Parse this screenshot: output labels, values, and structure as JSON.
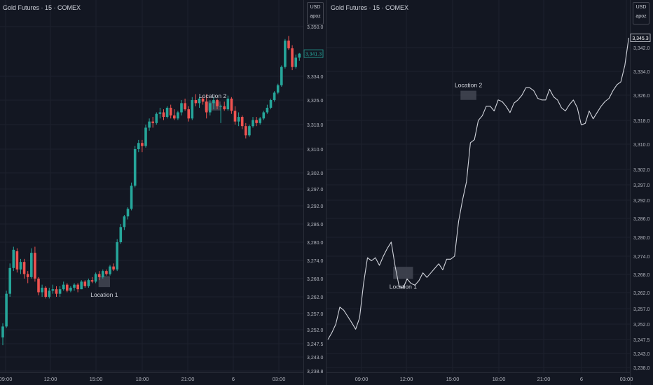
{
  "colors": {
    "background": "#131722",
    "grid": "#1e222d",
    "axis_text": "#b2b5be",
    "up": "#26a69a",
    "down": "#ef5350",
    "line": "#d1d4dc",
    "zone": "#4a4e59"
  },
  "chart_data": [
    {
      "type": "candlestick",
      "title": "Gold Futures · 15 · COMEX",
      "currency": "USD",
      "unit_label": "apoz",
      "x_tick_labels": [
        "09:00",
        "12:00",
        "15:00",
        "18:00",
        "21:00",
        "6",
        "03:00"
      ],
      "y_tick_labels": [
        "3,350.0",
        "3,334.0",
        "3,326.0",
        "3,318.0",
        "3,310.0",
        "3,302.0",
        "3,297.0",
        "3,292.0",
        "3,286.0",
        "3,280.0",
        "3,274.0",
        "3,268.0",
        "3,262.0",
        "3,257.0",
        "3,252.0",
        "3,247.5",
        "3,243.0",
        "3,238.8"
      ],
      "last_price_label": "3,341.3",
      "annotations": [
        {
          "text": "Location 1",
          "x_range": [
            26.8,
            30.0
          ],
          "y_range": [
            3265.2,
            3268.8
          ]
        },
        {
          "text": "Location 2",
          "x_range": [
            56.5,
            61.0
          ],
          "y_range": [
            3322.6,
            3325.6
          ]
        }
      ],
      "candles": [
        [
          3249.5,
          3254.0,
          3247.0,
          3253.0
        ],
        [
          3253.0,
          3264.0,
          3252.5,
          3263.0
        ],
        [
          3263.0,
          3273.0,
          3262.0,
          3271.5
        ],
        [
          3271.5,
          3278.5,
          3270.5,
          3277.5
        ],
        [
          3277.0,
          3278.0,
          3270.0,
          3271.0
        ],
        [
          3271.0,
          3274.5,
          3269.5,
          3273.5
        ],
        [
          3273.5,
          3274.5,
          3268.0,
          3269.5
        ],
        [
          3269.5,
          3270.5,
          3266.5,
          3268.5
        ],
        [
          3268.5,
          3278.0,
          3268.0,
          3276.5
        ],
        [
          3276.5,
          3278.5,
          3267.0,
          3268.0
        ],
        [
          3268.0,
          3268.5,
          3262.5,
          3263.5
        ],
        [
          3263.5,
          3266.0,
          3262.0,
          3265.0
        ],
        [
          3265.0,
          3265.5,
          3261.5,
          3262.0
        ],
        [
          3262.0,
          3265.0,
          3261.5,
          3264.0
        ],
        [
          3264.0,
          3266.0,
          3263.0,
          3264.5
        ],
        [
          3264.5,
          3265.5,
          3262.0,
          3263.0
        ],
        [
          3263.0,
          3265.5,
          3262.0,
          3264.5
        ],
        [
          3264.5,
          3267.0,
          3264.0,
          3266.0
        ],
        [
          3266.0,
          3266.5,
          3263.5,
          3264.0
        ],
        [
          3264.0,
          3265.5,
          3263.5,
          3265.0
        ],
        [
          3265.0,
          3266.5,
          3264.0,
          3266.0
        ],
        [
          3266.0,
          3266.5,
          3263.5,
          3264.5
        ],
        [
          3264.5,
          3267.5,
          3264.5,
          3267.0
        ],
        [
          3267.0,
          3267.5,
          3265.0,
          3265.5
        ],
        [
          3265.5,
          3268.0,
          3265.0,
          3267.5
        ],
        [
          3267.5,
          3268.5,
          3266.5,
          3267.0
        ],
        [
          3267.0,
          3270.0,
          3266.5,
          3269.5
        ],
        [
          3269.5,
          3270.5,
          3267.5,
          3268.5
        ],
        [
          3268.5,
          3271.0,
          3268.0,
          3270.5
        ],
        [
          3270.5,
          3271.0,
          3269.0,
          3269.5
        ],
        [
          3269.5,
          3272.5,
          3269.0,
          3272.0
        ],
        [
          3272.0,
          3273.0,
          3270.5,
          3271.0
        ],
        [
          3271.0,
          3281.0,
          3270.5,
          3280.0
        ],
        [
          3280.0,
          3286.0,
          3279.5,
          3285.0
        ],
        [
          3285.0,
          3289.0,
          3284.0,
          3288.5
        ],
        [
          3288.5,
          3291.5,
          3287.5,
          3291.0
        ],
        [
          3291.0,
          3299.0,
          3290.5,
          3298.0
        ],
        [
          3298.0,
          3311.0,
          3297.5,
          3310.0
        ],
        [
          3310.0,
          3313.0,
          3309.0,
          3312.0
        ],
        [
          3312.0,
          3313.0,
          3309.0,
          3311.0
        ],
        [
          3311.0,
          3318.0,
          3310.5,
          3317.0
        ],
        [
          3317.0,
          3320.0,
          3316.0,
          3319.0
        ],
        [
          3319.0,
          3320.5,
          3317.0,
          3318.5
        ],
        [
          3318.5,
          3322.0,
          3318.0,
          3321.5
        ],
        [
          3321.5,
          3323.5,
          3320.0,
          3322.0
        ],
        [
          3322.0,
          3323.0,
          3319.5,
          3320.5
        ],
        [
          3320.5,
          3324.0,
          3320.0,
          3323.5
        ],
        [
          3323.5,
          3324.5,
          3320.0,
          3321.0
        ],
        [
          3321.0,
          3323.0,
          3319.5,
          3320.0
        ],
        [
          3320.0,
          3322.5,
          3319.5,
          3322.0
        ],
        [
          3322.0,
          3326.0,
          3321.0,
          3325.0
        ],
        [
          3325.0,
          3326.5,
          3322.5,
          3323.0
        ],
        [
          3323.0,
          3324.0,
          3319.0,
          3320.0
        ],
        [
          3320.0,
          3327.0,
          3319.5,
          3326.0
        ],
        [
          3326.0,
          3328.0,
          3324.0,
          3325.0
        ],
        [
          3325.0,
          3327.0,
          3323.5,
          3326.5
        ],
        [
          3326.5,
          3327.5,
          3324.5,
          3325.5
        ],
        [
          3325.5,
          3328.0,
          3320.0,
          3322.0
        ],
        [
          3322.0,
          3326.0,
          3321.0,
          3325.0
        ],
        [
          3325.0,
          3327.0,
          3323.0,
          3326.0
        ],
        [
          3326.0,
          3326.5,
          3323.0,
          3324.0
        ],
        [
          3324.0,
          3324.5,
          3318.5,
          3324.0
        ],
        [
          3324.0,
          3325.5,
          3322.5,
          3323.0
        ],
        [
          3323.0,
          3327.5,
          3322.5,
          3326.5
        ],
        [
          3326.5,
          3327.0,
          3321.5,
          3322.5
        ],
        [
          3322.5,
          3324.0,
          3318.0,
          3319.0
        ],
        [
          3319.0,
          3322.0,
          3317.5,
          3320.5
        ],
        [
          3320.5,
          3321.0,
          3316.5,
          3317.5
        ],
        [
          3317.5,
          3318.5,
          3313.5,
          3314.5
        ],
        [
          3314.5,
          3318.0,
          3314.0,
          3317.5
        ],
        [
          3317.5,
          3320.5,
          3317.0,
          3319.5
        ],
        [
          3319.5,
          3320.5,
          3317.5,
          3318.5
        ],
        [
          3318.5,
          3320.5,
          3318.0,
          3320.0
        ],
        [
          3320.0,
          3322.5,
          3319.5,
          3322.0
        ],
        [
          3322.0,
          3324.5,
          3321.5,
          3323.5
        ],
        [
          3323.5,
          3326.5,
          3323.0,
          3326.0
        ],
        [
          3326.0,
          3329.0,
          3325.5,
          3328.5
        ],
        [
          3328.5,
          3331.5,
          3328.0,
          3331.0
        ],
        [
          3331.0,
          3337.5,
          3330.5,
          3337.0
        ],
        [
          3337.0,
          3346.0,
          3336.5,
          3345.5
        ],
        [
          3345.5,
          3347.0,
          3342.5,
          3343.0
        ],
        [
          3343.0,
          3344.0,
          3336.0,
          3337.0
        ],
        [
          3337.0,
          3341.0,
          3336.5,
          3340.0
        ],
        [
          3340.0,
          3341.5,
          3339.0,
          3341.3
        ]
      ]
    },
    {
      "type": "line",
      "title": "Gold Futures · 15 · COMEX",
      "currency": "USD",
      "unit_label": "apoz",
      "x_tick_labels": [
        "09:00",
        "12:00",
        "15:00",
        "18:00",
        "21:00",
        "6",
        "03:00"
      ],
      "y_tick_labels": [
        "3,342.0",
        "3,334.0",
        "3,326.0",
        "3,318.0",
        "3,310.0",
        "3,302.0",
        "3,297.0",
        "3,292.0",
        "3,286.0",
        "3,280.0",
        "3,274.0",
        "3,268.0",
        "3,262.0",
        "3,257.0",
        "3,252.0",
        "3,247.5",
        "3,243.0",
        "3,238.0"
      ],
      "last_price_label": "3,345.3",
      "annotations": [
        {
          "text": "Location 1",
          "x_range": [
            16.5,
            21.5
          ],
          "y_range": [
            3266.5,
            3270.5
          ]
        },
        {
          "text": "Location 2",
          "x_range": [
            33.5,
            37.5
          ],
          "y_range": [
            3324.5,
            3327.5
          ]
        }
      ],
      "points": [
        3247.5,
        3249.5,
        3252.0,
        3257.5,
        3256.5,
        3254.5,
        3252.5,
        3250.5,
        3254.0,
        3265.0,
        3273.5,
        3272.5,
        3273.5,
        3271.0,
        3274.0,
        3276.5,
        3278.5,
        3270.5,
        3264.0,
        3263.5,
        3266.5,
        3265.0,
        3264.5,
        3266.0,
        3268.5,
        3267.0,
        3268.5,
        3270.0,
        3271.5,
        3269.5,
        3273.0,
        3273.0,
        3274.0,
        3285.0,
        3292.0,
        3298.0,
        3310.5,
        3311.5,
        3318.0,
        3319.5,
        3322.5,
        3322.5,
        3321.0,
        3324.5,
        3324.0,
        3322.5,
        3320.5,
        3323.5,
        3324.5,
        3326.0,
        3328.5,
        3328.5,
        3327.5,
        3325.0,
        3324.5,
        3324.5,
        3328.0,
        3325.5,
        3324.5,
        3322.0,
        3321.0,
        3323.0,
        3324.5,
        3322.0,
        3316.5,
        3317.0,
        3321.0,
        3318.5,
        3320.5,
        3322.5,
        3324.0,
        3325.0,
        3327.5,
        3329.5,
        3330.5,
        3336.0,
        3345.3
      ]
    }
  ]
}
